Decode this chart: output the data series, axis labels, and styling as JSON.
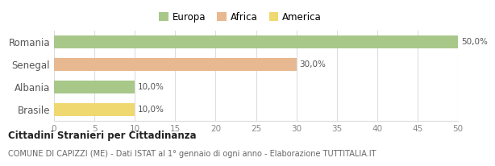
{
  "categories": [
    "Romania",
    "Senegal",
    "Albania",
    "Brasile"
  ],
  "values": [
    50.0,
    30.0,
    10.0,
    10.0
  ],
  "colors": [
    "#a8c88a",
    "#e8b890",
    "#a8c88a",
    "#f0d870"
  ],
  "labels": [
    "50,0%",
    "30,0%",
    "10,0%",
    "10,0%"
  ],
  "xlim": [
    0,
    50
  ],
  "xticks": [
    0,
    5,
    10,
    15,
    20,
    25,
    30,
    35,
    40,
    45,
    50
  ],
  "legend_items": [
    {
      "label": "Europa",
      "color": "#a8c88a"
    },
    {
      "label": "Africa",
      "color": "#e8b890"
    },
    {
      "label": "America",
      "color": "#f0d870"
    }
  ],
  "title_bold": "Cittadini Stranieri per Cittadinanza",
  "subtitle": "COMUNE DI CAPIZZI (ME) - Dati ISTAT al 1° gennaio di ogni anno - Elaborazione TUTTITALIA.IT",
  "background_color": "#ffffff",
  "bar_height": 0.6,
  "grid_color": "#dddddd",
  "tick_label_color": "#888888",
  "ytick_color": "#555555",
  "value_label_fontsize": 7.5,
  "axis_label_fontsize": 7.5,
  "legend_fontsize": 8.5,
  "title_fontsize": 8.5,
  "subtitle_fontsize": 7.0
}
